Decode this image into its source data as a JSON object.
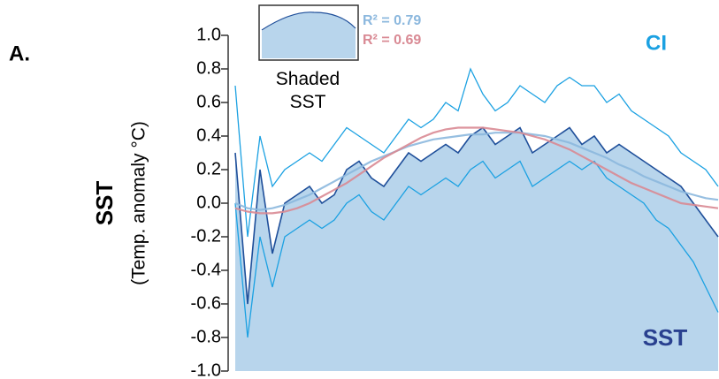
{
  "chart_data": {
    "type": "line",
    "panel_label": "A.",
    "y_label": "SST",
    "y_sublabel": "(Temp. anomaly °C)",
    "inset_label": "Shaded SST",
    "categories": [
      null,
      null,
      null,
      null,
      null,
      null,
      null,
      null,
      null,
      null,
      null,
      null,
      null,
      null,
      null,
      null,
      null,
      null,
      null,
      null,
      null,
      null,
      null,
      null,
      null,
      null,
      null,
      null,
      null,
      null,
      null,
      null,
      null,
      null,
      null,
      null,
      null,
      null,
      null,
      null
    ],
    "ylim": [
      -1.0,
      1.0
    ],
    "yticks": [
      {
        "value": -1.0,
        "label": "-1.0"
      },
      -0.8,
      -0.6,
      -0.4,
      -0.2,
      {
        "value": 0.0,
        "label": "0.0"
      },
      0.2,
      0.4,
      0.6,
      0.8,
      {
        "value": 1.0,
        "label": "1.0"
      }
    ],
    "series": [
      {
        "name": "SST",
        "color": "#1f4f9a",
        "fill": "#b8d5ec",
        "values": [
          0.3,
          -0.6,
          0.2,
          -0.3,
          0.0,
          0.05,
          0.1,
          0.0,
          0.05,
          0.2,
          0.25,
          0.15,
          0.1,
          0.2,
          0.3,
          0.25,
          0.3,
          0.35,
          0.3,
          0.4,
          0.45,
          0.35,
          0.4,
          0.45,
          0.3,
          0.35,
          0.4,
          0.45,
          0.35,
          0.4,
          0.3,
          0.35,
          0.3,
          0.25,
          0.2,
          0.15,
          0.1,
          0.0,
          -0.1,
          -0.2
        ]
      },
      {
        "name": "CI",
        "color": "#1ba1e2",
        "upper": [
          0.7,
          -0.2,
          0.4,
          0.1,
          0.2,
          0.25,
          0.3,
          0.25,
          0.35,
          0.45,
          0.4,
          0.35,
          0.3,
          0.4,
          0.5,
          0.45,
          0.5,
          0.6,
          0.55,
          0.8,
          0.65,
          0.55,
          0.6,
          0.7,
          0.65,
          0.6,
          0.7,
          0.75,
          0.7,
          0.7,
          0.6,
          0.65,
          0.55,
          0.5,
          0.45,
          0.4,
          0.3,
          0.25,
          0.2,
          0.1
        ],
        "lower": [
          0.0,
          -0.8,
          -0.2,
          -0.5,
          -0.2,
          -0.15,
          -0.1,
          -0.15,
          -0.1,
          0.0,
          0.05,
          -0.05,
          -0.1,
          0.0,
          0.1,
          0.05,
          0.1,
          0.15,
          0.1,
          0.2,
          0.25,
          0.15,
          0.2,
          0.25,
          0.1,
          0.15,
          0.2,
          0.25,
          0.2,
          0.25,
          0.15,
          0.1,
          0.05,
          0.0,
          -0.1,
          -0.15,
          -0.25,
          -0.35,
          -0.5,
          -0.65
        ]
      },
      {
        "name": "R² = 0.79",
        "color": "#8cb8de",
        "values": [
          0.0,
          -0.03,
          -0.04,
          -0.03,
          -0.01,
          0.02,
          0.05,
          0.09,
          0.13,
          0.17,
          0.21,
          0.25,
          0.28,
          0.31,
          0.34,
          0.36,
          0.38,
          0.39,
          0.4,
          0.41,
          0.41,
          0.42,
          0.42,
          0.42,
          0.41,
          0.4,
          0.38,
          0.36,
          0.33,
          0.3,
          0.27,
          0.23,
          0.2,
          0.16,
          0.13,
          0.1,
          0.07,
          0.05,
          0.03,
          0.02
        ]
      },
      {
        "name": "R² = 0.69",
        "color": "#d98a94",
        "values": [
          -0.03,
          -0.05,
          -0.06,
          -0.06,
          -0.05,
          -0.03,
          0.0,
          0.04,
          0.08,
          0.12,
          0.17,
          0.22,
          0.27,
          0.31,
          0.35,
          0.39,
          0.42,
          0.44,
          0.45,
          0.45,
          0.45,
          0.44,
          0.43,
          0.42,
          0.4,
          0.38,
          0.35,
          0.32,
          0.28,
          0.24,
          0.2,
          0.16,
          0.12,
          0.09,
          0.06,
          0.03,
          0.0,
          -0.01,
          -0.02,
          -0.03
        ]
      }
    ]
  }
}
